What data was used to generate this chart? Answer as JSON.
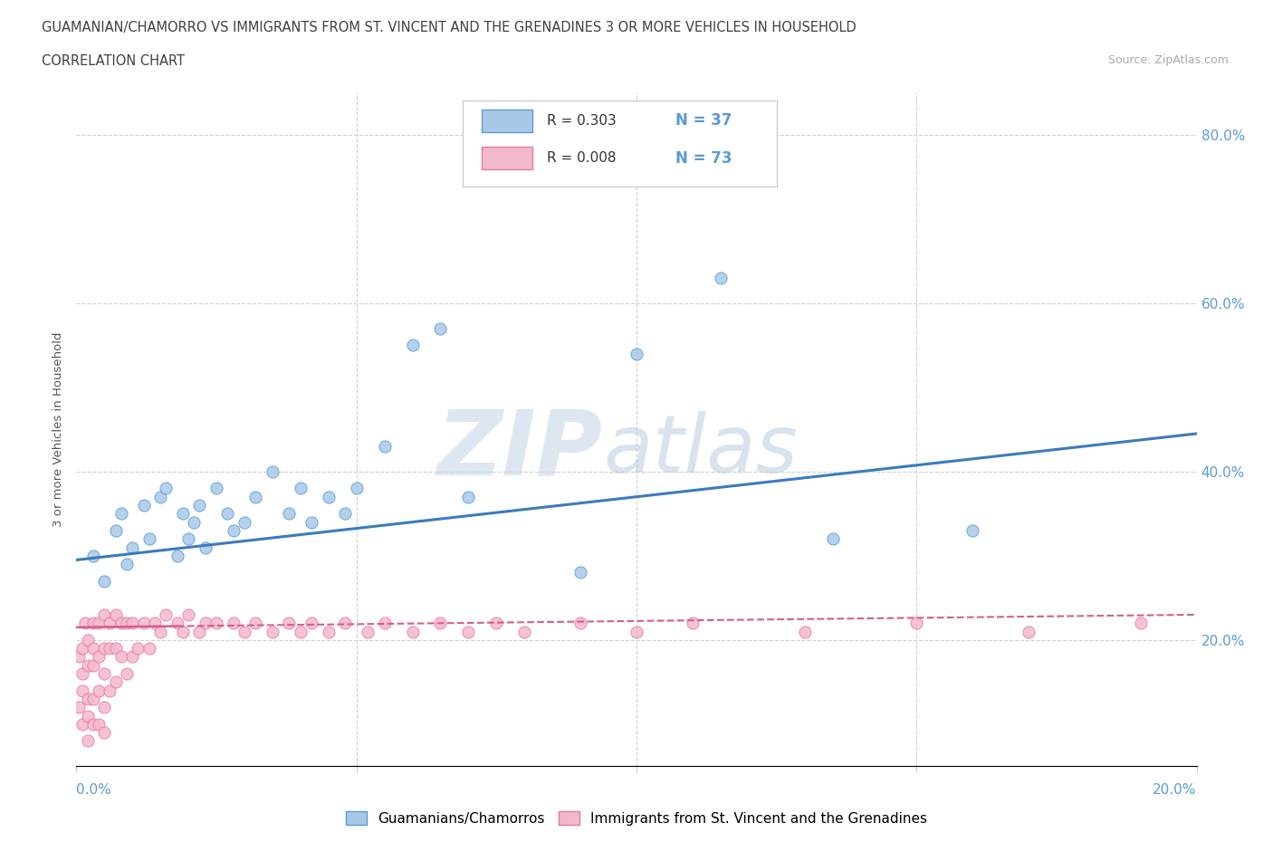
{
  "title_line1": "GUAMANIAN/CHAMORRO VS IMMIGRANTS FROM ST. VINCENT AND THE GRENADINES 3 OR MORE VEHICLES IN HOUSEHOLD",
  "title_line2": "CORRELATION CHART",
  "source_text": "Source: ZipAtlas.com",
  "ylabel": "3 or more Vehicles in Household",
  "yaxis_labels": [
    "20.0%",
    "40.0%",
    "60.0%",
    "80.0%"
  ],
  "legend_label1": "Guamanians/Chamorros",
  "legend_label2": "Immigrants from St. Vincent and the Grenadines",
  "R1": 0.303,
  "N1": 37,
  "R2": 0.008,
  "N2": 73,
  "color1": "#a8c8e8",
  "color2": "#f4b8cc",
  "edge_color1": "#5b9bd5",
  "edge_color2": "#e87a9f",
  "trend_color1": "#3a7bbf",
  "trend_color2": "#d45f85",
  "blue_scatter_x": [
    0.003,
    0.005,
    0.007,
    0.008,
    0.009,
    0.01,
    0.012,
    0.013,
    0.015,
    0.016,
    0.018,
    0.019,
    0.02,
    0.021,
    0.022,
    0.023,
    0.025,
    0.027,
    0.028,
    0.03,
    0.032,
    0.035,
    0.038,
    0.04,
    0.042,
    0.045,
    0.048,
    0.05,
    0.055,
    0.06,
    0.065,
    0.07,
    0.09,
    0.1,
    0.115,
    0.135,
    0.16
  ],
  "blue_scatter_y": [
    0.3,
    0.27,
    0.33,
    0.35,
    0.29,
    0.31,
    0.36,
    0.32,
    0.37,
    0.38,
    0.3,
    0.35,
    0.32,
    0.34,
    0.36,
    0.31,
    0.38,
    0.35,
    0.33,
    0.34,
    0.37,
    0.4,
    0.35,
    0.38,
    0.34,
    0.37,
    0.35,
    0.38,
    0.43,
    0.55,
    0.57,
    0.37,
    0.28,
    0.54,
    0.63,
    0.32,
    0.33
  ],
  "blue_trend_x": [
    0.0,
    0.2
  ],
  "blue_trend_y": [
    0.295,
    0.445
  ],
  "pink_scatter_x": [
    0.0005,
    0.0005,
    0.001,
    0.001,
    0.001,
    0.001,
    0.0015,
    0.002,
    0.002,
    0.002,
    0.002,
    0.002,
    0.003,
    0.003,
    0.003,
    0.003,
    0.003,
    0.004,
    0.004,
    0.004,
    0.004,
    0.005,
    0.005,
    0.005,
    0.005,
    0.005,
    0.006,
    0.006,
    0.006,
    0.007,
    0.007,
    0.007,
    0.008,
    0.008,
    0.009,
    0.009,
    0.01,
    0.01,
    0.011,
    0.012,
    0.013,
    0.014,
    0.015,
    0.016,
    0.018,
    0.019,
    0.02,
    0.022,
    0.023,
    0.025,
    0.028,
    0.03,
    0.032,
    0.035,
    0.038,
    0.04,
    0.042,
    0.045,
    0.048,
    0.052,
    0.055,
    0.06,
    0.065,
    0.07,
    0.075,
    0.08,
    0.09,
    0.1,
    0.11,
    0.13,
    0.15,
    0.17,
    0.19
  ],
  "pink_scatter_y": [
    0.18,
    0.12,
    0.1,
    0.14,
    0.16,
    0.19,
    0.22,
    0.08,
    0.11,
    0.13,
    0.17,
    0.2,
    0.1,
    0.13,
    0.17,
    0.19,
    0.22,
    0.1,
    0.14,
    0.18,
    0.22,
    0.09,
    0.12,
    0.16,
    0.19,
    0.23,
    0.14,
    0.19,
    0.22,
    0.15,
    0.19,
    0.23,
    0.18,
    0.22,
    0.16,
    0.22,
    0.18,
    0.22,
    0.19,
    0.22,
    0.19,
    0.22,
    0.21,
    0.23,
    0.22,
    0.21,
    0.23,
    0.21,
    0.22,
    0.22,
    0.22,
    0.21,
    0.22,
    0.21,
    0.22,
    0.21,
    0.22,
    0.21,
    0.22,
    0.21,
    0.22,
    0.21,
    0.22,
    0.21,
    0.22,
    0.21,
    0.22,
    0.21,
    0.22,
    0.21,
    0.22,
    0.21,
    0.22
  ],
  "pink_trend_x": [
    0.0,
    0.2
  ],
  "pink_trend_y": [
    0.215,
    0.23
  ],
  "xlim": [
    0.0,
    0.2
  ],
  "ylim": [
    0.05,
    0.85
  ],
  "xgrid_values": [
    0.05,
    0.1,
    0.15
  ],
  "ygrid_values": [
    0.2,
    0.4,
    0.6,
    0.8
  ],
  "watermark_zip": "ZIP",
  "watermark_atlas": "atlas"
}
